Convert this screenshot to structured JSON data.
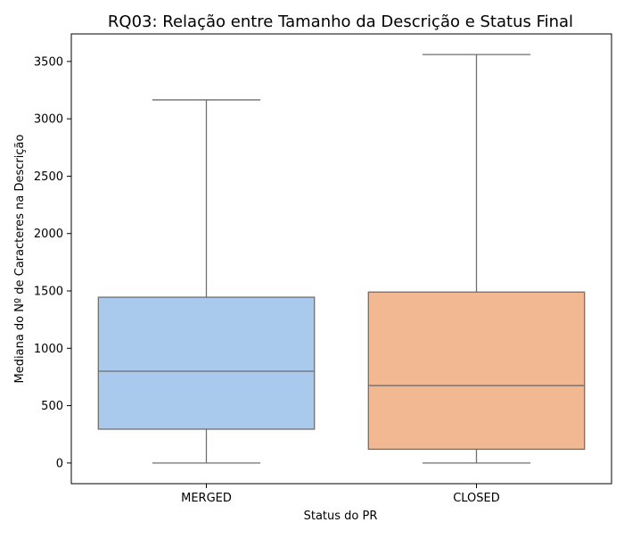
{
  "chart_data": {
    "type": "box",
    "title": "RQ03: Relação entre Tamanho da Descrição e Status Final",
    "xlabel": "Status do PR",
    "ylabel": "Mediana do Nº de Caracteres na Descrição",
    "ylim": [
      -180,
      3740
    ],
    "yticks": [
      0,
      500,
      1000,
      1500,
      2000,
      2500,
      3000,
      3500
    ],
    "grid": false,
    "categories": [
      "MERGED",
      "CLOSED"
    ],
    "boxes": [
      {
        "category": "MERGED",
        "whisker_low": 0,
        "q1": 295,
        "median": 800,
        "q3": 1445,
        "whisker_high": 3165,
        "color": "#a9c9ed"
      },
      {
        "category": "CLOSED",
        "whisker_low": 0,
        "q1": 120,
        "median": 675,
        "q3": 1490,
        "whisker_high": 3560,
        "color": "#f2b892"
      }
    ],
    "line_color": "#6f6f6f"
  }
}
